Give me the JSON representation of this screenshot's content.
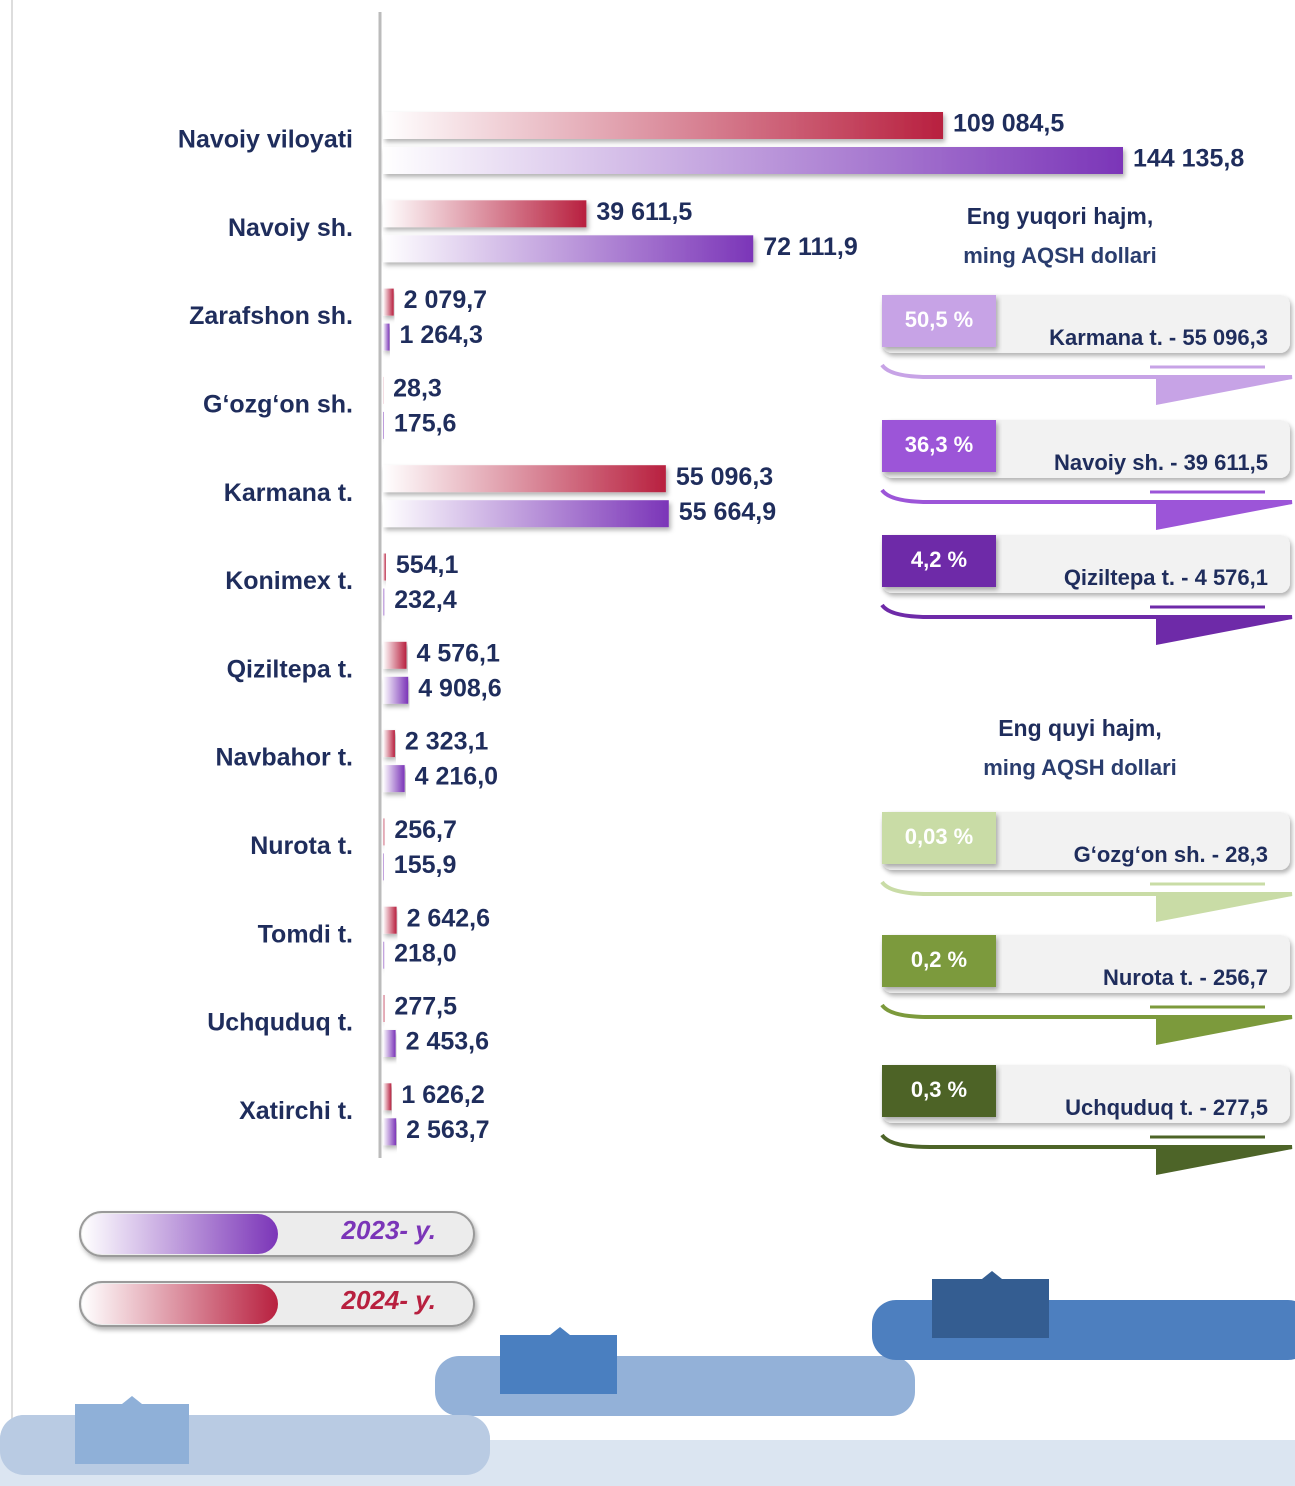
{
  "chart_data": {
    "type": "bar",
    "orientation": "horizontal",
    "categories": [
      "Navoiy viloyati",
      "Navoiy sh.",
      "Zarafshon sh.",
      "G‘ozg‘on sh.",
      "Karmana t.",
      "Konimex t.",
      "Qiziltepa t.",
      "Navbahor t.",
      "Nurota t.",
      "Tomdi t.",
      "Uchquduq t.",
      "Xatirchi t."
    ],
    "series": [
      {
        "name": "2023- y.",
        "color": "#7b35b8",
        "values": [
          144135.8,
          72111.9,
          1264.3,
          175.6,
          55664.9,
          232.4,
          4908.6,
          4216.0,
          155.9,
          218.0,
          2453.6,
          2563.7
        ],
        "value_labels": [
          "144 135,8",
          "72 111,9",
          "1 264,3",
          "175,6",
          "55 664,9",
          "232,4",
          "4 908,6",
          "4 216,0",
          "155,9",
          "218,0",
          "2 453,6",
          "2 563,7"
        ]
      },
      {
        "name": "2024- y.",
        "color": "#b8203f",
        "values": [
          109084.5,
          39611.5,
          2079.7,
          28.3,
          55096.3,
          554.1,
          4576.1,
          2323.1,
          256.7,
          2642.6,
          277.5,
          1626.2
        ],
        "value_labels": [
          "109 084,5",
          "39 611,5",
          "2 079,7",
          "28,3",
          "55 096,3",
          "554,1",
          "4 576,1",
          "2 323,1",
          "256,7",
          "2 642,6",
          "277,5",
          "1 626,2"
        ]
      }
    ],
    "highlights": [
      {
        "title": "Eng yuqori hajm,",
        "subtitle": "ming AQSH dollari",
        "items": [
          {
            "percent": "50,5 %",
            "label": "Karmana t. - 55 096,3",
            "color": "#c7a3e6"
          },
          {
            "percent": "36,3 %",
            "label": "Navoiy sh. - 39 611,5",
            "color": "#9c55d8"
          },
          {
            "percent": "4,2 %",
            "label": "Qiziltepa t. - 4 576,1",
            "color": "#6e2aa8"
          }
        ]
      },
      {
        "title": "Eng quyi hajm,",
        "subtitle": "ming AQSH dollari",
        "items": [
          {
            "percent": "0,03 %",
            "label": "G‘ozg‘on sh.  - 28,3",
            "color": "#c9dca6"
          },
          {
            "percent": "0,2 %",
            "label": "Nurota t.  - 256,7",
            "color": "#7c9a3c"
          },
          {
            "percent": "0,3 %",
            "label": "Uchquduq t. - 277,5",
            "color": "#4d6428"
          }
        ]
      }
    ]
  }
}
